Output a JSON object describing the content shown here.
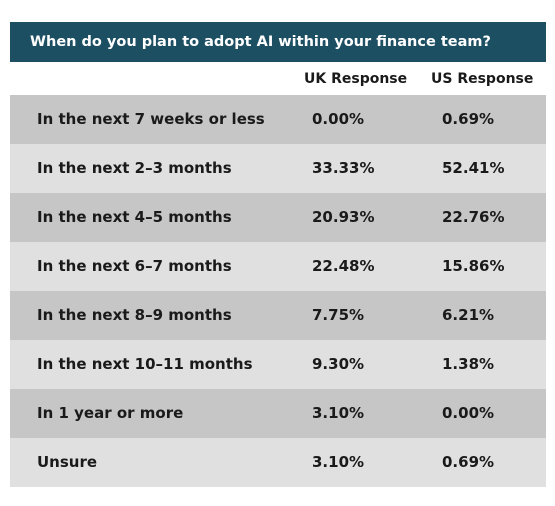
{
  "chart_data": {
    "type": "table",
    "title": "When do you plan to adopt AI within your finance team?",
    "columns": [
      "",
      "UK Response",
      "US Response"
    ],
    "rows": [
      {
        "label": "In the next 7 weeks or less",
        "uk": "0.00%",
        "us": "0.69%"
      },
      {
        "label": "In the next 2–3 months",
        "uk": "33.33%",
        "us": "52.41%"
      },
      {
        "label": "In the next 4–5 months",
        "uk": "20.93%",
        "us": "22.76%"
      },
      {
        "label": "In the next 6–7 months",
        "uk": "22.48%",
        "us": "15.86%"
      },
      {
        "label": "In the next 8–9 months",
        "uk": "7.75%",
        "us": "6.21%"
      },
      {
        "label": "In the next 10–11 months",
        "uk": "9.30%",
        "us": "1.38%"
      },
      {
        "label": "In 1 year or more",
        "uk": "3.10%",
        "us": "0.00%"
      },
      {
        "label": "Unsure",
        "uk": "3.10%",
        "us": "0.69%"
      }
    ]
  },
  "colors": {
    "title_bar": "#1d4f63",
    "row_dark": "#c6c6c6",
    "row_light": "#e0e0e0",
    "text": "#1a1a1a"
  }
}
